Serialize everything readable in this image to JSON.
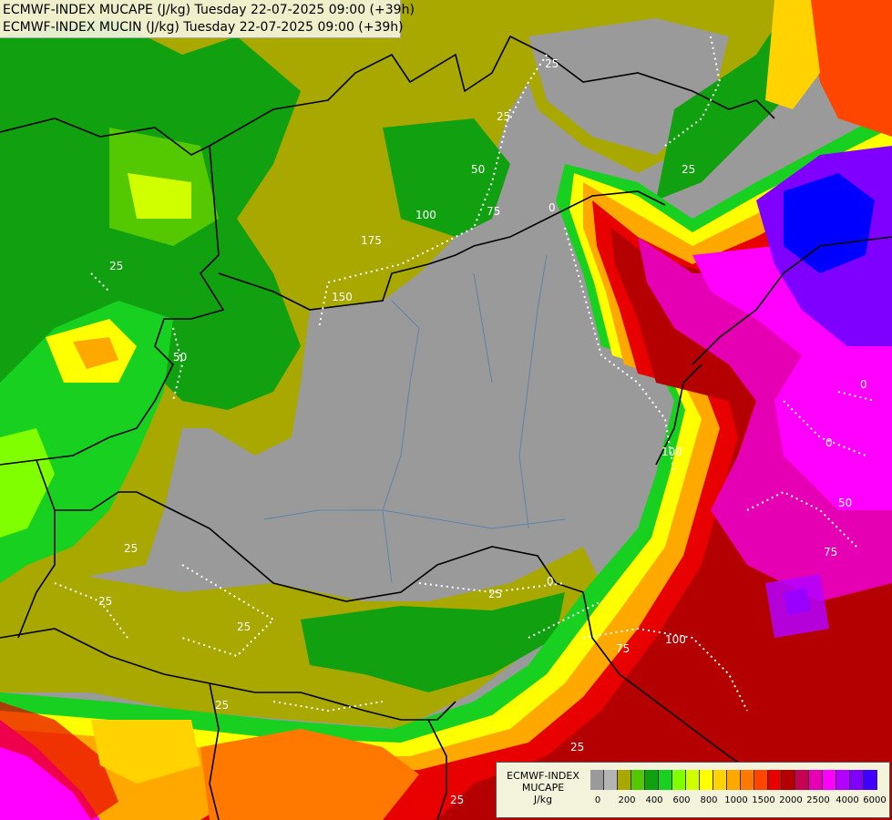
{
  "title": {
    "line1": "ECMWF-INDEX MUCAPE (J/kg) Tuesday 22-07-2025 09:00 (+39h)",
    "line2": "ECMWF-INDEX MUCIN (J/kg) Tuesday 22-07-2025 09:00 (+39h)"
  },
  "legend": {
    "label_line1": "ECMWF-INDEX",
    "label_line2": "MUCAPE",
    "label_line3": "J/kg",
    "colors": [
      "#9a9a9a",
      "#b4b4b4",
      "#a8a800",
      "#54c800",
      "#10a010",
      "#18d020",
      "#80ff00",
      "#d0ff00",
      "#ffff00",
      "#ffd200",
      "#ffa800",
      "#ff7800",
      "#ff4600",
      "#e80000",
      "#b40000",
      "#c80050",
      "#e600b4",
      "#ff00ff",
      "#b400ff",
      "#8000ff",
      "#4000ff",
      "#0000ff",
      "#0080ff",
      "#00d8ff",
      "#80ffff",
      "#ffffff"
    ],
    "ticks": [
      "0",
      "200",
      "400",
      "600",
      "800",
      "1000",
      "1500",
      "2000",
      "2500",
      "4000",
      "6000"
    ]
  },
  "contour_labels": [
    "25",
    "25",
    "25",
    "25",
    "50",
    "75",
    "100",
    "150",
    "175",
    "0",
    "100",
    "50",
    "25",
    "0",
    "0",
    "50",
    "75",
    "100",
    "75",
    "25",
    "25",
    "25",
    "25",
    "25",
    "25",
    "0"
  ]
}
